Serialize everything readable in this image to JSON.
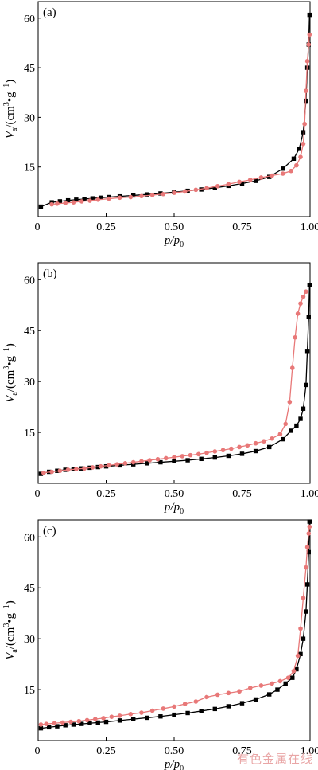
{
  "watermark": "有色金属在线",
  "colors": {
    "black_series": "#000000",
    "pink_series": "#e87878",
    "axis": "#000000"
  },
  "chart_data": [
    {
      "type": "line",
      "panel_label": "(a)",
      "xlabel": "p/p0",
      "ylabel": "Va/(cm3•g−1)",
      "xlim": [
        0,
        1.0
      ],
      "ylim": [
        0,
        65
      ],
      "xticks": [
        0,
        0.25,
        0.5,
        0.75,
        1.0
      ],
      "xtick_labels": [
        "0",
        "0.25",
        "0.50",
        "0.75",
        "1.00"
      ],
      "yticks": [
        15,
        30,
        45,
        60
      ],
      "ytick_labels": [
        "15",
        "30",
        "45",
        "60"
      ],
      "series": [
        {
          "color": "#000000",
          "marker": "square",
          "x": [
            0.01,
            0.05,
            0.08,
            0.11,
            0.14,
            0.17,
            0.2,
            0.23,
            0.26,
            0.3,
            0.35,
            0.4,
            0.45,
            0.5,
            0.55,
            0.6,
            0.65,
            0.7,
            0.75,
            0.8,
            0.85,
            0.9,
            0.94,
            0.96,
            0.975,
            0.985,
            0.99,
            0.995,
            0.998
          ],
          "y": [
            3.0,
            4.3,
            4.6,
            4.9,
            5.1,
            5.3,
            5.5,
            5.7,
            5.9,
            6.1,
            6.4,
            6.7,
            7.0,
            7.4,
            7.8,
            8.2,
            8.7,
            9.3,
            10.0,
            10.8,
            12.0,
            14.5,
            17.5,
            20.5,
            25.5,
            35.0,
            45.0,
            52.0,
            61.0
          ]
        },
        {
          "color": "#e87878",
          "marker": "circle",
          "x": [
            0.998,
            0.995,
            0.99,
            0.985,
            0.98,
            0.975,
            0.965,
            0.95,
            0.93,
            0.9,
            0.86,
            0.82,
            0.78,
            0.74,
            0.7,
            0.66,
            0.62,
            0.58,
            0.54,
            0.5,
            0.46,
            0.42,
            0.38,
            0.34,
            0.3,
            0.26,
            0.22,
            0.19,
            0.16,
            0.13,
            0.1,
            0.07,
            0.05
          ],
          "y": [
            55.0,
            52.0,
            47.0,
            38.0,
            28.0,
            22.0,
            18.0,
            15.5,
            13.8,
            13.0,
            12.4,
            11.8,
            11.1,
            10.5,
            9.8,
            9.2,
            8.6,
            8.1,
            7.6,
            7.2,
            6.8,
            6.5,
            6.2,
            5.9,
            5.7,
            5.4,
            5.1,
            4.8,
            4.6,
            4.3,
            4.1,
            3.9,
            3.7
          ]
        }
      ]
    },
    {
      "type": "line",
      "panel_label": "(b)",
      "xlabel": "p/p0",
      "ylabel": "Va/(cm3•g−1)",
      "xlim": [
        0,
        1.0
      ],
      "ylim": [
        0,
        65
      ],
      "xticks": [
        0,
        0.25,
        0.5,
        0.75,
        1.0
      ],
      "xtick_labels": [
        "0",
        "0.25",
        "0.50",
        "0.75",
        "1.00"
      ],
      "yticks": [
        15,
        30,
        45,
        60
      ],
      "ytick_labels": [
        "15",
        "30",
        "45",
        "60"
      ],
      "series": [
        {
          "color": "#000000",
          "marker": "square",
          "x": [
            0.01,
            0.04,
            0.07,
            0.1,
            0.13,
            0.16,
            0.19,
            0.22,
            0.25,
            0.3,
            0.35,
            0.4,
            0.45,
            0.5,
            0.55,
            0.6,
            0.65,
            0.7,
            0.75,
            0.8,
            0.85,
            0.9,
            0.93,
            0.95,
            0.965,
            0.975,
            0.985,
            0.99,
            0.995,
            0.998
          ],
          "y": [
            2.8,
            3.4,
            3.7,
            4.0,
            4.2,
            4.4,
            4.6,
            4.8,
            5.0,
            5.3,
            5.6,
            5.9,
            6.2,
            6.5,
            6.8,
            7.2,
            7.6,
            8.1,
            8.7,
            9.5,
            10.7,
            13.0,
            15.5,
            17.0,
            19.0,
            22.0,
            29.0,
            39.0,
            49.0,
            58.5
          ]
        },
        {
          "color": "#e87878",
          "marker": "circle",
          "x": [
            0.985,
            0.975,
            0.965,
            0.955,
            0.945,
            0.935,
            0.925,
            0.91,
            0.89,
            0.86,
            0.83,
            0.8,
            0.77,
            0.74,
            0.71,
            0.68,
            0.65,
            0.62,
            0.59,
            0.56,
            0.53,
            0.5,
            0.47,
            0.44,
            0.41,
            0.38,
            0.35,
            0.32,
            0.29,
            0.26,
            0.23,
            0.2,
            0.17,
            0.14,
            0.11,
            0.08,
            0.05,
            0.02
          ],
          "y": [
            56.5,
            55.0,
            53.0,
            50.0,
            43.0,
            34.0,
            24.0,
            17.5,
            14.5,
            13.2,
            12.4,
            11.8,
            11.2,
            10.7,
            10.2,
            9.8,
            9.4,
            9.0,
            8.6,
            8.3,
            8.0,
            7.7,
            7.4,
            7.1,
            6.8,
            6.5,
            6.2,
            5.9,
            5.6,
            5.3,
            5.0,
            4.7,
            4.4,
            4.2,
            4.0,
            3.7,
            3.4,
            3.1
          ]
        }
      ]
    },
    {
      "type": "line",
      "panel_label": "(c)",
      "xlabel": "p/p0",
      "ylabel": "Va/(cm3•g−1)",
      "xlim": [
        0,
        1.0
      ],
      "ylim": [
        0,
        65
      ],
      "xticks": [
        0,
        0.25,
        0.5,
        0.75,
        1.0
      ],
      "xtick_labels": [
        "0",
        "0.25",
        "0.50",
        "0.75",
        "1.00"
      ],
      "yticks": [
        15,
        30,
        45,
        60
      ],
      "ytick_labels": [
        "15",
        "30",
        "45",
        "60"
      ],
      "series": [
        {
          "color": "#000000",
          "marker": "square",
          "x": [
            0.01,
            0.04,
            0.07,
            0.1,
            0.13,
            0.16,
            0.19,
            0.22,
            0.25,
            0.3,
            0.35,
            0.4,
            0.45,
            0.5,
            0.55,
            0.6,
            0.65,
            0.7,
            0.75,
            0.8,
            0.85,
            0.88,
            0.91,
            0.935,
            0.95,
            0.965,
            0.975,
            0.985,
            0.99,
            0.995,
            0.998
          ],
          "y": [
            3.6,
            3.9,
            4.2,
            4.5,
            4.7,
            4.9,
            5.1,
            5.3,
            5.5,
            5.9,
            6.3,
            6.7,
            7.1,
            7.6,
            8.1,
            8.7,
            9.3,
            10.1,
            11.0,
            12.1,
            13.6,
            15.0,
            16.8,
            18.5,
            21.0,
            25.5,
            30.0,
            38.0,
            46.0,
            55.5,
            64.5
          ]
        },
        {
          "color": "#e87878",
          "marker": "circle",
          "x": [
            0.998,
            0.995,
            0.99,
            0.985,
            0.975,
            0.965,
            0.955,
            0.94,
            0.92,
            0.89,
            0.86,
            0.82,
            0.78,
            0.74,
            0.7,
            0.66,
            0.62,
            0.58,
            0.54,
            0.5,
            0.46,
            0.42,
            0.38,
            0.34,
            0.3,
            0.27,
            0.24,
            0.21,
            0.18,
            0.15,
            0.12,
            0.09,
            0.06,
            0.03,
            0.01
          ],
          "y": [
            63.0,
            61.0,
            57.0,
            51.0,
            42.0,
            33.0,
            25.0,
            20.5,
            18.5,
            17.5,
            16.8,
            16.2,
            15.5,
            14.5,
            14.0,
            13.5,
            12.8,
            11.5,
            10.8,
            10.0,
            9.4,
            8.8,
            8.2,
            7.8,
            7.3,
            7.0,
            6.6,
            6.3,
            6.0,
            5.7,
            5.5,
            5.3,
            5.1,
            4.9,
            4.7
          ]
        }
      ]
    }
  ]
}
